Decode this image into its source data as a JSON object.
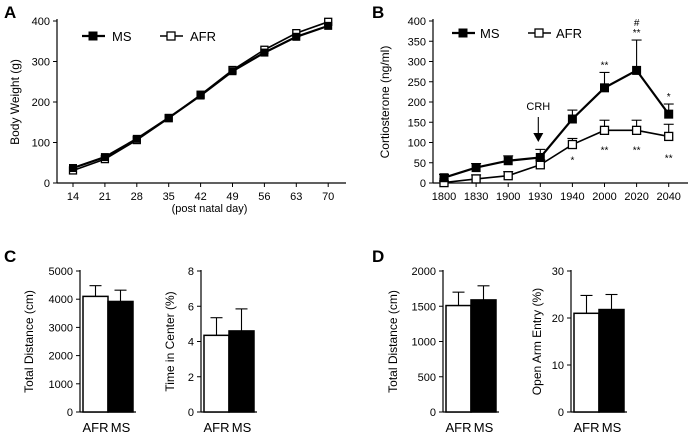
{
  "panels": {
    "A": {
      "label": "A"
    },
    "B": {
      "label": "B"
    },
    "C": {
      "label": "C"
    },
    "D": {
      "label": "D"
    }
  },
  "legend": {
    "ms": "MS",
    "afr": "AFR"
  },
  "chart_data": [
    {
      "id": "A",
      "type": "line",
      "title": "",
      "ylabel": "Body Weight (g)",
      "xlabel": "(post natal day)",
      "x": [
        "14",
        "21",
        "28",
        "35",
        "42",
        "49",
        "56",
        "63",
        "70"
      ],
      "ylim": [
        0,
        400
      ],
      "yticks": [
        0,
        100,
        200,
        300,
        400
      ],
      "series": [
        {
          "name": "MS",
          "values": [
            37,
            64,
            109,
            161,
            216,
            276,
            322,
            361,
            388
          ]
        },
        {
          "name": "AFR",
          "values": [
            31,
            59,
            106,
            160,
            218,
            279,
            329,
            370,
            398
          ]
        }
      ]
    },
    {
      "id": "B",
      "type": "line",
      "ylabel": "Cortiosterone (ng/ml)",
      "x": [
        "1800",
        "1830",
        "1900",
        "1930",
        "1940",
        "2000",
        "2020",
        "2040"
      ],
      "ylim": [
        0,
        400
      ],
      "yticks": [
        0,
        50,
        100,
        150,
        200,
        250,
        300,
        350,
        400
      ],
      "annotation": "CRH",
      "series": [
        {
          "name": "MS",
          "values": [
            13,
            38,
            55,
            63,
            158,
            235,
            278,
            170
          ],
          "errors": [
            8,
            10,
            12,
            20,
            22,
            38,
            75,
            25
          ]
        },
        {
          "name": "AFR",
          "values": [
            1,
            10,
            18,
            45,
            95,
            130,
            130,
            115
          ],
          "errors": [
            4,
            10,
            10,
            12,
            15,
            25,
            25,
            30
          ]
        }
      ],
      "significance": {
        "MS": [
          "",
          "",
          "",
          "",
          "",
          "**",
          "#\n**",
          "*"
        ],
        "AFR": [
          "",
          "",
          "",
          "",
          "*",
          "**",
          "**",
          "**"
        ]
      }
    },
    {
      "id": "C1",
      "type": "bar",
      "ylabel": "Total Distance (cm)",
      "categories": [
        "AFR",
        "MS"
      ],
      "values": [
        4100,
        3920
      ],
      "errors": [
        380,
        400
      ],
      "ylim": [
        0,
        5000
      ],
      "yticks": [
        0,
        1000,
        2000,
        3000,
        4000,
        5000
      ]
    },
    {
      "id": "C2",
      "type": "bar",
      "ylabel": "Time in Center (%)",
      "categories": [
        "AFR",
        "MS"
      ],
      "values": [
        4.35,
        4.6
      ],
      "errors": [
        1.0,
        1.25
      ],
      "ylim": [
        0,
        8
      ],
      "yticks": [
        0,
        2,
        4,
        6,
        8
      ]
    },
    {
      "id": "D1",
      "type": "bar",
      "ylabel": "Total Distance (cm)",
      "categories": [
        "AFR",
        "MS"
      ],
      "values": [
        1510,
        1590
      ],
      "errors": [
        190,
        200
      ],
      "ylim": [
        0,
        2000
      ],
      "yticks": [
        0,
        500,
        1000,
        1500,
        2000
      ]
    },
    {
      "id": "D2",
      "type": "bar",
      "ylabel": "Open Arm Entry (%)",
      "categories": [
        "AFR",
        "MS"
      ],
      "values": [
        21,
        21.8
      ],
      "errors": [
        3.8,
        3.2
      ],
      "ylim": [
        0,
        30
      ],
      "yticks": [
        0,
        10,
        20,
        30
      ]
    }
  ]
}
